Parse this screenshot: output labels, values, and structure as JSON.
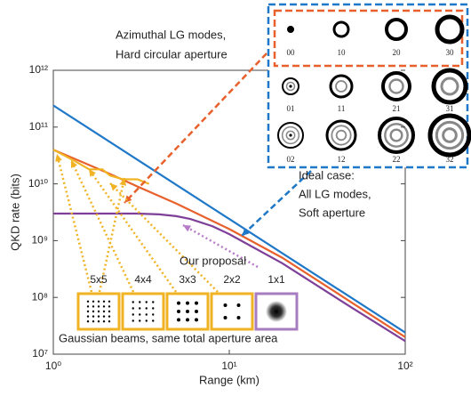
{
  "chart_data": {
    "type": "line",
    "xlabel": "Range (km)",
    "ylabel": "QKD rate (bits)",
    "xlog": true,
    "ylog": true,
    "xlim": [
      1,
      100
    ],
    "ylim": [
      10000000,
      1000000000000
    ],
    "xticks": [
      {
        "value": 1,
        "label": "10⁰"
      },
      {
        "value": 10,
        "label": "10¹"
      },
      {
        "value": 100,
        "label": "10²"
      }
    ],
    "yticks": [
      {
        "value": 10000000,
        "label": "10⁷"
      },
      {
        "value": 100000000,
        "label": "10⁸"
      },
      {
        "value": 1000000000,
        "label": "10⁹"
      },
      {
        "value": 10000000000,
        "label": "10¹⁰"
      },
      {
        "value": 100000000000,
        "label": "10¹¹"
      },
      {
        "value": 1000000000000,
        "label": "10¹²"
      }
    ],
    "series": [
      {
        "color": "#1f78c8",
        "x": [
          1,
          10,
          100
        ],
        "values": [
          240000000000,
          2400000000,
          24000000
        ]
      },
      {
        "color": "#e8612c",
        "x": [
          1,
          2,
          3,
          5,
          10,
          20,
          50,
          100
        ],
        "values": [
          40000000000,
          16000000000,
          9000000000,
          4500000000,
          1600000000,
          500000000,
          80000000,
          20000000
        ]
      },
      {
        "color": "#7e3f98",
        "x": [
          1,
          2,
          3,
          4,
          5,
          6,
          8,
          10,
          20,
          50,
          100
        ],
        "values": [
          3000000000,
          3000000000,
          3000000000,
          2900000000,
          2700000000,
          2400000000,
          1800000000,
          1300000000,
          400000000,
          65000000,
          17000000
        ]
      },
      {
        "color": "#f0b323",
        "x": [
          1,
          1.3,
          1.6,
          1.9,
          2.1,
          2.5,
          3,
          3.5
        ],
        "values": [
          40000000000,
          26000000000,
          18000000000,
          18000000000,
          14000000000,
          12000000000,
          12000000000,
          10000000000
        ]
      }
    ],
    "annotations": [
      [
        "Azimuthal LG modes,",
        "Hard circular aperture"
      ],
      [
        "Ideal case:",
        "All LG modes,",
        "Soft aperture"
      ],
      [
        "Our proposal"
      ],
      [
        "Gaussian beams, same total aperture area"
      ]
    ],
    "mode_labels": [
      "00",
      "10",
      "20",
      "30",
      "01",
      "11",
      "21",
      "31",
      "02",
      "12",
      "22",
      "32"
    ],
    "grid_labels": [
      "5x5",
      "4x4",
      "3x3",
      "2x2",
      "1x1"
    ]
  }
}
